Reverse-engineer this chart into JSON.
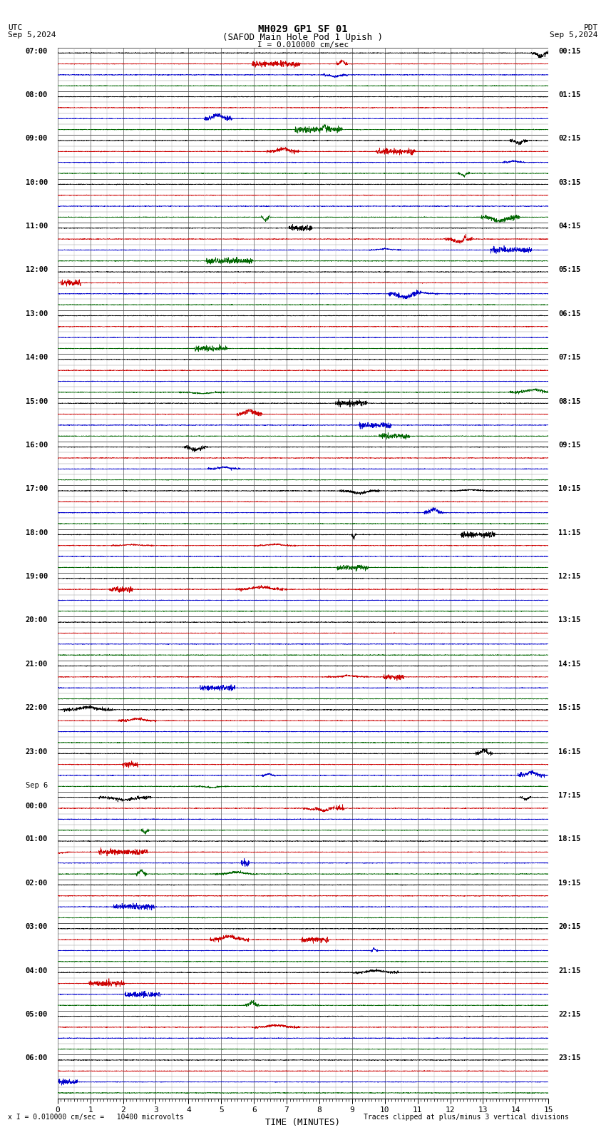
{
  "title_line1": "MH029 GP1 SF 01",
  "title_line2": "(SAFOD Main Hole Pod 1 Upish )",
  "scale_label": "I = 0.010000 cm/sec",
  "left_label_line1": "UTC",
  "left_label_line2": "Sep 5,2024",
  "right_label_line1": "PDT",
  "right_label_line2": "Sep 5,2024",
  "bottom_label1": "x I = 0.010000 cm/sec =   10400 microvolts",
  "bottom_label2": "Traces clipped at plus/minus 3 vertical divisions",
  "xlabel": "TIME (MINUTES)",
  "xmin": 0,
  "xmax": 15,
  "xticks": [
    0,
    1,
    2,
    3,
    4,
    5,
    6,
    7,
    8,
    9,
    10,
    11,
    12,
    13,
    14,
    15
  ],
  "bg_color": "#ffffff",
  "grid_color": "#999999",
  "trace_colors": [
    "#000000",
    "#cc0000",
    "#0000cc",
    "#006600"
  ],
  "trace_labels_left": [
    "07:00",
    "",
    "",
    "",
    "08:00",
    "",
    "",
    "",
    "09:00",
    "",
    "",
    "",
    "10:00",
    "",
    "",
    "",
    "11:00",
    "",
    "",
    "",
    "12:00",
    "",
    "",
    "",
    "13:00",
    "",
    "",
    "",
    "14:00",
    "",
    "",
    "",
    "15:00",
    "",
    "",
    "",
    "16:00",
    "",
    "",
    "",
    "17:00",
    "",
    "",
    "",
    "18:00",
    "",
    "",
    "",
    "19:00",
    "",
    "",
    "",
    "20:00",
    "",
    "",
    "",
    "21:00",
    "",
    "",
    "",
    "22:00",
    "",
    "",
    "",
    "23:00",
    "",
    "",
    "",
    "Sep 6",
    "00:00",
    "",
    "",
    "01:00",
    "",
    "",
    "",
    "02:00",
    "",
    "",
    "",
    "03:00",
    "",
    "",
    "",
    "04:00",
    "",
    "",
    "",
    "05:00",
    "",
    "",
    "",
    "06:00",
    "",
    "",
    ""
  ],
  "trace_labels_right": [
    "00:15",
    "",
    "",
    "",
    "01:15",
    "",
    "",
    "",
    "02:15",
    "",
    "",
    "",
    "03:15",
    "",
    "",
    "",
    "04:15",
    "",
    "",
    "",
    "05:15",
    "",
    "",
    "",
    "06:15",
    "",
    "",
    "",
    "07:15",
    "",
    "",
    "",
    "08:15",
    "",
    "",
    "",
    "09:15",
    "",
    "",
    "",
    "10:15",
    "",
    "",
    "",
    "11:15",
    "",
    "",
    "",
    "12:15",
    "",
    "",
    "",
    "13:15",
    "",
    "",
    "",
    "14:15",
    "",
    "",
    "",
    "15:15",
    "",
    "",
    "",
    "16:15",
    "",
    "",
    "",
    "17:15",
    "",
    "",
    "",
    "18:15",
    "",
    "",
    "",
    "19:15",
    "",
    "",
    "",
    "20:15",
    "",
    "",
    "",
    "21:15",
    "",
    "",
    "",
    "22:15",
    "",
    "",
    "",
    "23:15",
    "",
    "",
    ""
  ],
  "num_rows": 96,
  "num_hour_groups": 24,
  "traces_per_hour": 4,
  "noise_seed": 42
}
